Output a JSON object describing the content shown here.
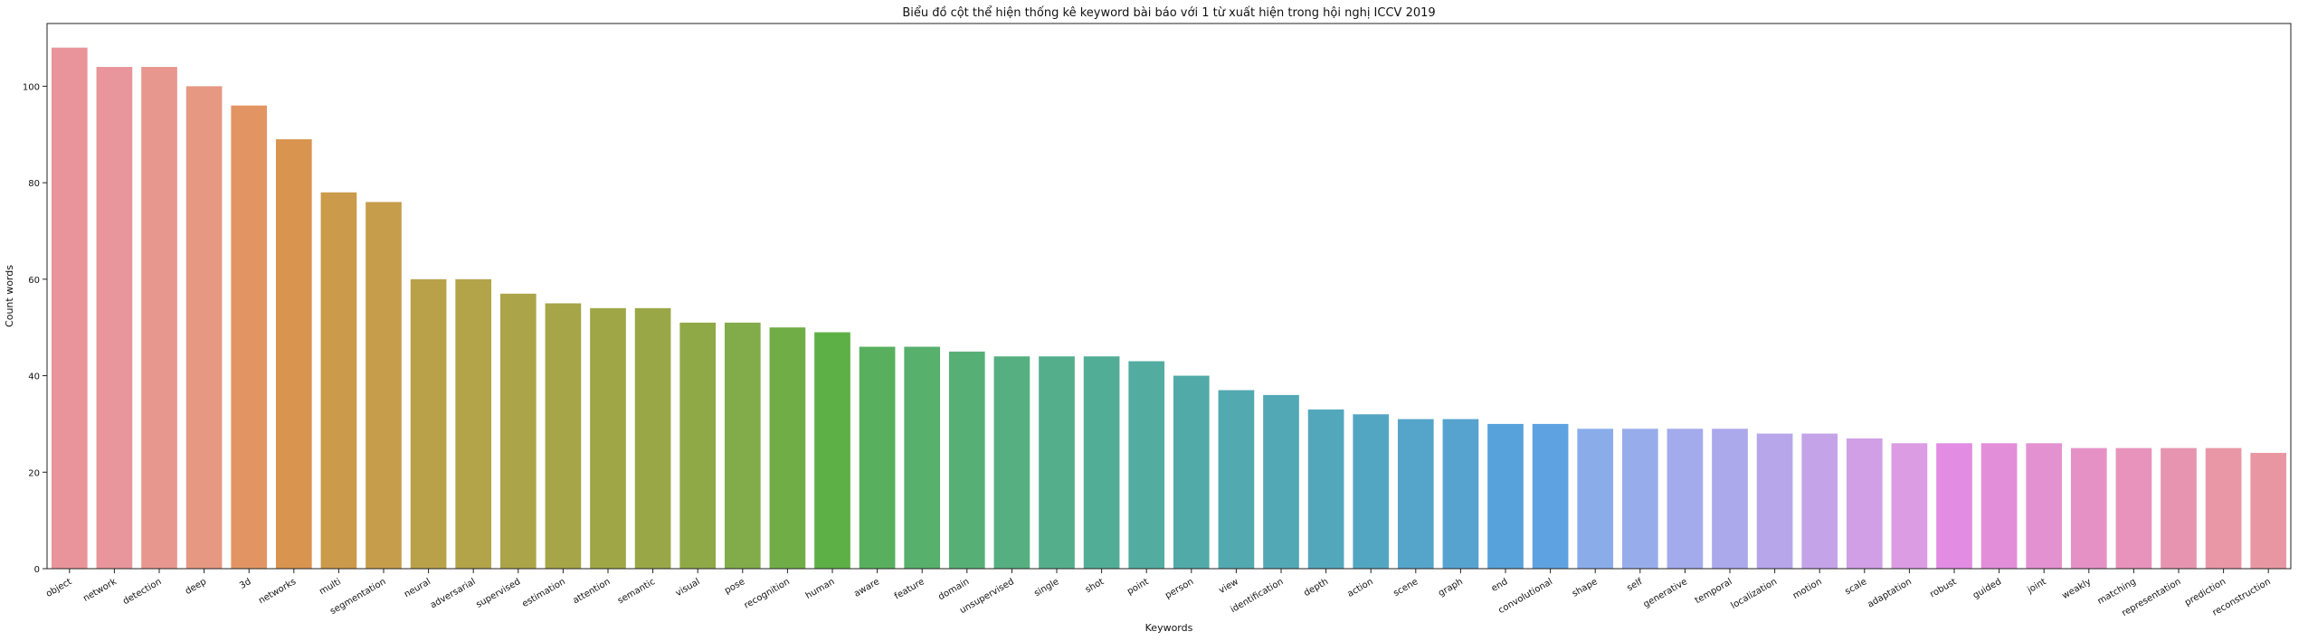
{
  "chart_data": {
    "type": "bar",
    "title": "Biểu đồ cột thể hiện thống kê keyword bài báo với 1 từ xuất hiện trong hội nghị ICCV 2019",
    "xlabel": "Keywords",
    "ylabel": "Count words",
    "ylim": [
      0,
      113
    ],
    "yticks": [
      0,
      20,
      40,
      60,
      80,
      100
    ],
    "categories": [
      "object",
      "network",
      "detection",
      "deep",
      "3d",
      "networks",
      "multi",
      "segmentation",
      "neural",
      "adversarial",
      "supervised",
      "estimation",
      "attention",
      "semantic",
      "visual",
      "pose",
      "recognition",
      "human",
      "aware",
      "feature",
      "domain",
      "unsupervised",
      "single",
      "shot",
      "point",
      "person",
      "view",
      "identification",
      "depth",
      "action",
      "scene",
      "graph",
      "end",
      "convolutional",
      "shape",
      "self",
      "generative",
      "temporal",
      "localization",
      "motion",
      "scale",
      "adaptation",
      "robust",
      "guided",
      "joint",
      "weakly",
      "matching",
      "representation",
      "prediction",
      "reconstruction"
    ],
    "values": [
      108,
      104,
      104,
      100,
      96,
      89,
      78,
      76,
      60,
      60,
      57,
      55,
      54,
      54,
      51,
      51,
      50,
      49,
      46,
      46,
      45,
      44,
      44,
      44,
      43,
      40,
      37,
      36,
      33,
      32,
      31,
      31,
      30,
      30,
      29,
      29,
      29,
      29,
      28,
      28,
      27,
      26,
      26,
      26,
      26,
      25,
      25,
      25,
      25,
      24
    ],
    "colors": [
      "#e9949a",
      "#e8959b",
      "#e8978f",
      "#e69882",
      "#e29563",
      "#d9944f",
      "#cb9a4a",
      "#c69d4b",
      "#b9a14a",
      "#b3a349",
      "#aba448",
      "#a6a547",
      "#9fa646",
      "#9aa746",
      "#8fa946",
      "#82ab49",
      "#71ad47",
      "#5db045",
      "#58b05e",
      "#57b06c",
      "#56b076",
      "#55af80",
      "#54ae8c",
      "#52ad97",
      "#52ac9f",
      "#51aaa8",
      "#52a9b0",
      "#53a8b6",
      "#53a7bb",
      "#53a6c1",
      "#55a4c9",
      "#56a3d0",
      "#57a2da",
      "#5ea2e2",
      "#8aadea",
      "#97adeb",
      "#a3abec",
      "#aca8ec",
      "#b7a6ea",
      "#c4a3e8",
      "#d09fe5",
      "#db9ce3",
      "#e28ce3",
      "#e38ed9",
      "#e491d1",
      "#e591c6",
      "#e793bb",
      "#e794b0",
      "#e996a7",
      "#e897a2"
    ],
    "grid": false,
    "legend": "none"
  }
}
